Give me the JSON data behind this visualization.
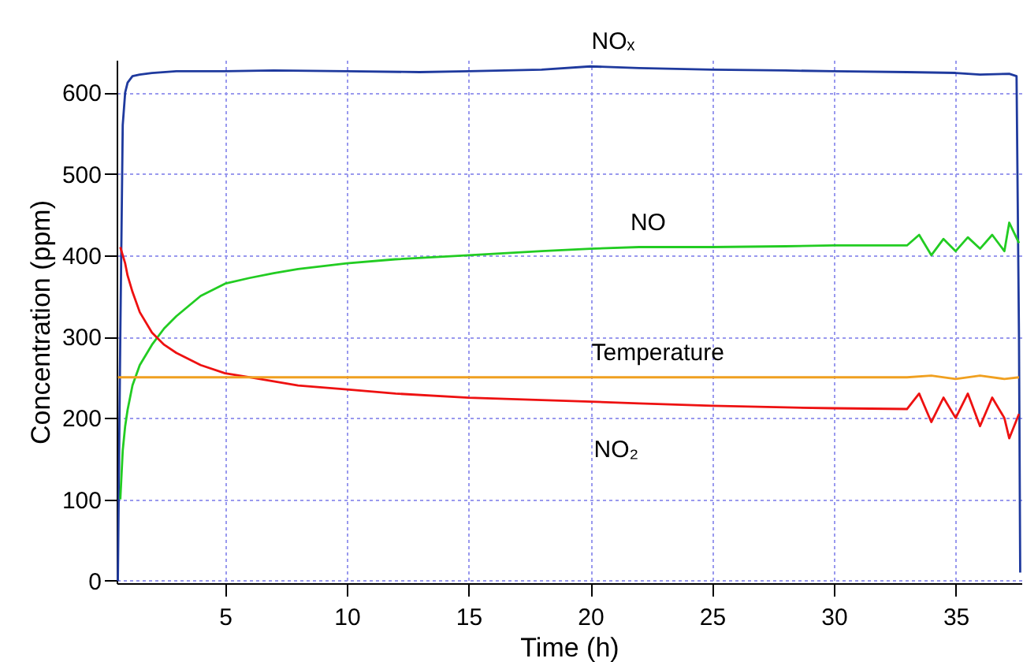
{
  "chart_data": {
    "type": "line",
    "xlabel": "Time (h)",
    "ylabel": "Concentration (ppm)",
    "xlim": [
      0.55,
      37.7
    ],
    "ylim": [
      -3,
      640
    ],
    "xticks": [
      5,
      10,
      15,
      20,
      25,
      30,
      35
    ],
    "yticks": [
      0,
      100,
      200,
      300,
      400,
      500,
      600
    ],
    "grid": true,
    "legend": false,
    "line_style": "solid",
    "marker": "none",
    "series": [
      {
        "color": "#1f3a9e",
        "x": [
          0.6,
          0.7,
          0.8,
          0.9,
          1.0,
          1.2,
          1.5,
          2,
          3,
          5,
          7,
          10,
          13,
          15,
          18,
          20,
          22,
          25,
          28,
          30,
          33,
          35,
          36,
          37.2,
          37.5,
          37.6,
          37.65
        ],
        "values": [
          0,
          300,
          560,
          600,
          612,
          620,
          622,
          624,
          626,
          626,
          627,
          626,
          625,
          626,
          628,
          632,
          630,
          628,
          627,
          626,
          625,
          624,
          622,
          623,
          620,
          300,
          10
        ]
      },
      {
        "color": "#22cc22",
        "x": [
          0.7,
          0.8,
          0.9,
          1.0,
          1.2,
          1.5,
          2,
          2.5,
          3,
          4,
          5,
          6,
          7,
          8,
          10,
          12,
          15,
          18,
          20,
          22,
          25,
          28,
          30,
          33,
          33.5,
          34,
          34.5,
          35,
          35.5,
          36,
          36.5,
          37,
          37.2,
          37.6
        ],
        "values": [
          100,
          160,
          190,
          210,
          240,
          265,
          290,
          310,
          325,
          350,
          365,
          372,
          378,
          383,
          390,
          395,
          400,
          405,
          408,
          410,
          410,
          411,
          412,
          412,
          425,
          400,
          420,
          405,
          422,
          408,
          425,
          405,
          440,
          415
        ]
      },
      {
        "color": "#ee1111",
        "x": [
          0.7,
          0.8,
          0.9,
          1.0,
          1.2,
          1.5,
          2,
          2.5,
          3,
          4,
          5,
          6,
          7,
          8,
          10,
          12,
          15,
          18,
          20,
          22,
          25,
          28,
          30,
          33,
          33.5,
          34,
          34.5,
          35,
          35.5,
          36,
          36.5,
          37,
          37.2,
          37.6
        ],
        "values": [
          410,
          400,
          390,
          375,
          355,
          330,
          305,
          290,
          280,
          265,
          255,
          250,
          245,
          240,
          235,
          230,
          225,
          222,
          220,
          218,
          215,
          213,
          212,
          211,
          230,
          195,
          225,
          200,
          230,
          190,
          225,
          200,
          175,
          205
        ]
      },
      {
        "color": "#f0a020",
        "x": [
          0.6,
          5,
          10,
          15,
          20,
          25,
          30,
          33,
          34,
          35,
          36,
          37,
          37.6
        ],
        "values": [
          250,
          250,
          250,
          250,
          250,
          250,
          250,
          250,
          252,
          248,
          252,
          248,
          250
        ]
      }
    ],
    "annotations": [
      {
        "text": "NOₓ",
        "x": 19.4,
        "y": 632
      },
      {
        "text": "NO",
        "x": 21,
        "y": 410
      },
      {
        "text": "Temperature",
        "x": 19.4,
        "y": 250
      },
      {
        "text": "NO₂",
        "x": 19.5,
        "y": 218
      }
    ]
  }
}
